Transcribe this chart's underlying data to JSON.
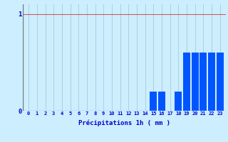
{
  "hours": [
    0,
    1,
    2,
    3,
    4,
    5,
    6,
    7,
    8,
    9,
    10,
    11,
    12,
    13,
    14,
    15,
    16,
    17,
    18,
    19,
    20,
    21,
    22,
    23
  ],
  "values": [
    0,
    0,
    0,
    0,
    0,
    0,
    0,
    0,
    0,
    0,
    0,
    0,
    0,
    0,
    0,
    0.2,
    0.2,
    0,
    0.2,
    0.6,
    0.6,
    0.6,
    0.6,
    0.6
  ],
  "bar_color": "#0055ff",
  "background_color": "#cceeff",
  "grid_color": "#aacccc",
  "axis_color": "#0000cc",
  "xlabel": "Précipitations 1h ( mm )",
  "ylim": [
    0,
    1.1
  ],
  "yticks": [
    0,
    1
  ],
  "ytick_labels": [
    "0",
    "1"
  ]
}
